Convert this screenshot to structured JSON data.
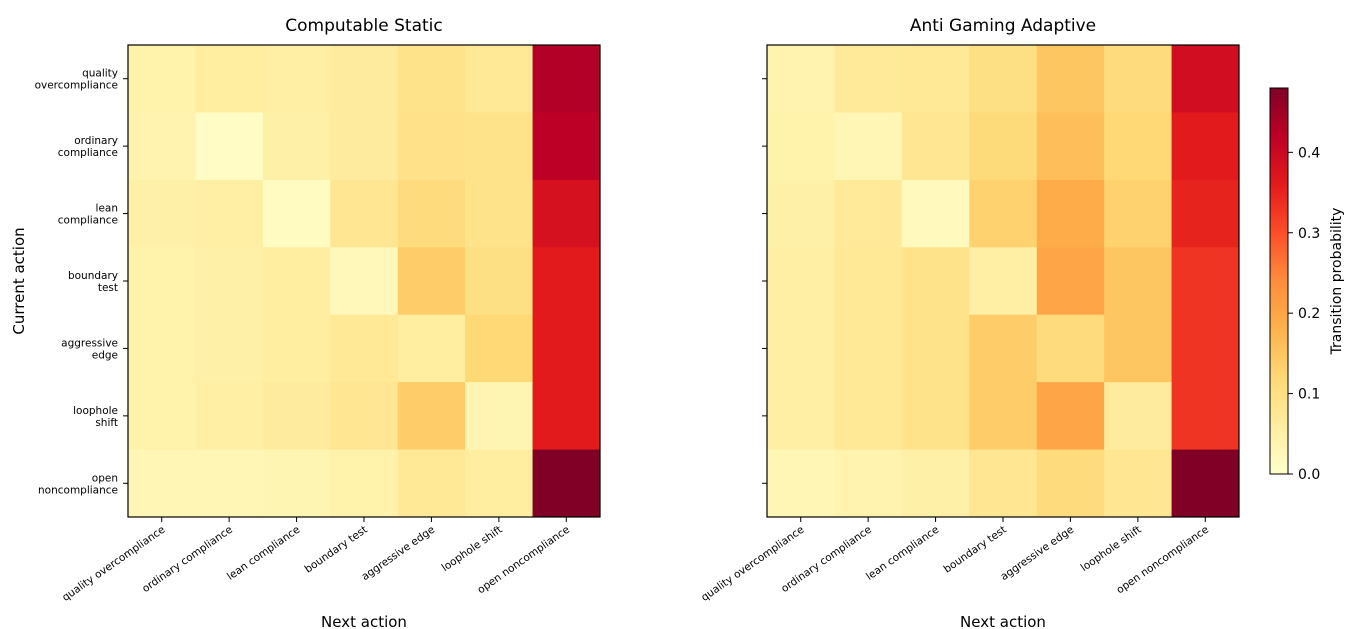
{
  "chart_data": [
    {
      "type": "heatmap",
      "title": "Computable Static",
      "xlabel": "Next action",
      "ylabel": "Current action",
      "x_categories": [
        "quality overcompliance",
        "ordinary compliance",
        "lean compliance",
        "boundary test",
        "aggressive edge",
        "loophole shift",
        "open noncompliance"
      ],
      "y_categories": [
        "quality\novercompliance",
        "ordinary\ncompliance",
        "lean\ncompliance",
        "boundary\ntest",
        "aggressive\nedge",
        "loophole\nshift",
        "open\nnoncompliance"
      ],
      "values": [
        [
          0.045,
          0.06,
          0.055,
          0.065,
          0.09,
          0.075,
          0.43
        ],
        [
          0.04,
          0.01,
          0.05,
          0.065,
          0.095,
          0.09,
          0.42
        ],
        [
          0.05,
          0.055,
          0.015,
          0.08,
          0.11,
          0.09,
          0.38
        ],
        [
          0.045,
          0.05,
          0.06,
          0.025,
          0.14,
          0.1,
          0.36
        ],
        [
          0.045,
          0.05,
          0.06,
          0.075,
          0.06,
          0.12,
          0.36
        ],
        [
          0.045,
          0.055,
          0.065,
          0.08,
          0.14,
          0.035,
          0.36
        ],
        [
          0.03,
          0.03,
          0.035,
          0.045,
          0.075,
          0.06,
          0.48
        ]
      ],
      "vmin": 0,
      "vmax": 0.48
    },
    {
      "type": "heatmap",
      "title": "Anti Gaming Adaptive",
      "xlabel": "Next action",
      "ylabel": "",
      "x_categories": [
        "quality overcompliance",
        "ordinary compliance",
        "lean compliance",
        "boundary test",
        "aggressive edge",
        "loophole shift",
        "open noncompliance"
      ],
      "y_categories": [],
      "values": [
        [
          0.04,
          0.07,
          0.075,
          0.1,
          0.15,
          0.11,
          0.39
        ],
        [
          0.045,
          0.03,
          0.08,
          0.115,
          0.16,
          0.12,
          0.36
        ],
        [
          0.05,
          0.07,
          0.02,
          0.13,
          0.19,
          0.13,
          0.35
        ],
        [
          0.055,
          0.075,
          0.09,
          0.055,
          0.2,
          0.15,
          0.33
        ],
        [
          0.055,
          0.075,
          0.09,
          0.14,
          0.11,
          0.15,
          0.33
        ],
        [
          0.055,
          0.075,
          0.09,
          0.14,
          0.2,
          0.065,
          0.33
        ],
        [
          0.03,
          0.04,
          0.05,
          0.08,
          0.11,
          0.08,
          0.48
        ]
      ],
      "vmin": 0,
      "vmax": 0.48
    }
  ],
  "colorbar": {
    "label": "Transition probability",
    "ticks": [
      0.0,
      0.1,
      0.2,
      0.3,
      0.4
    ],
    "tick_labels": [
      "0.0",
      "0.1",
      "0.2",
      "0.3",
      "0.4"
    ],
    "colormap": [
      "#ffffcc",
      "#ffeda0",
      "#fed976",
      "#feb24c",
      "#fd8d3c",
      "#fc4e2a",
      "#e31a1c",
      "#bd0026",
      "#800026"
    ]
  }
}
